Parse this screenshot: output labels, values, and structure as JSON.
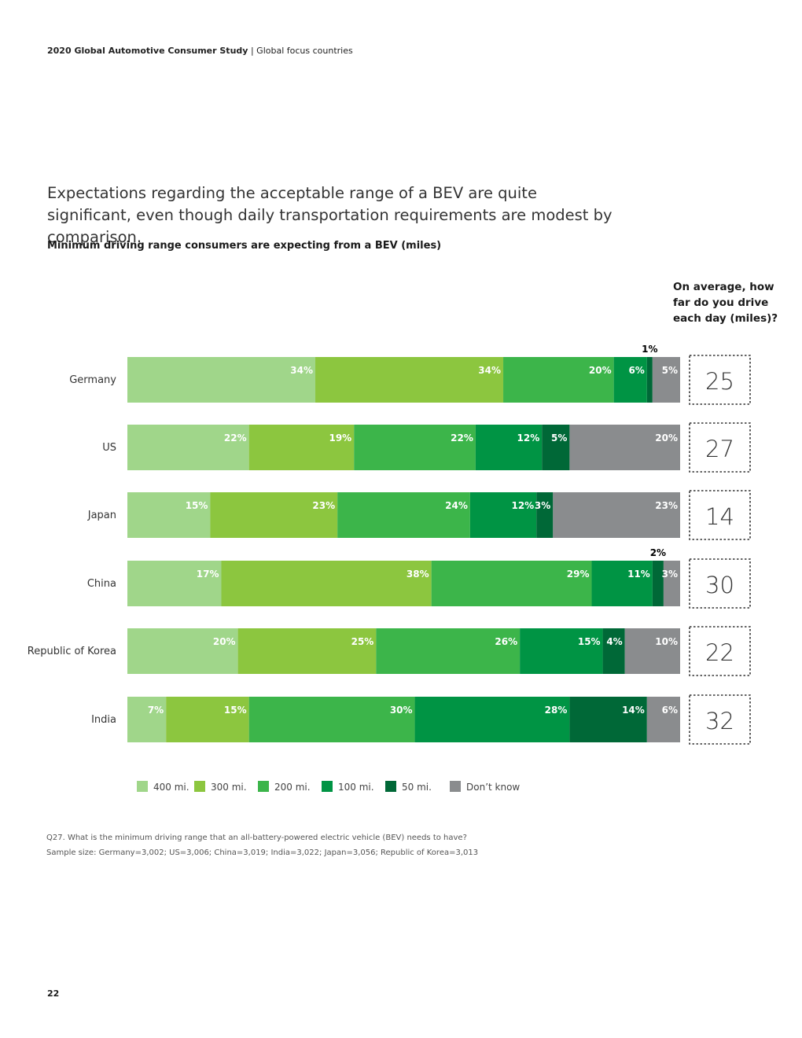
{
  "header": {
    "study": "2020 Global Automotive Consumer Study",
    "separator": "|",
    "section": "Global focus countries"
  },
  "headline": "Expectations regarding the acceptable range of a BEV are quite significant, even though daily transportation requirements are modest by comparison.",
  "footnotes": {
    "question": "Q27. What is the minimum driving range that an all-battery-powered electric vehicle (BEV) needs to have?",
    "sample": "Sample size: Germany=3,002; US=3,006; China=3,019; India=3,022; Japan=3,056; Republic of Korea=3,013"
  },
  "page_number": "22",
  "chart_data": {
    "type": "bar",
    "orientation": "horizontal",
    "stacked": true,
    "title": "Minimum driving range consumers are expecting from a BEV (miles)",
    "categories": [
      "Germany",
      "US",
      "Japan",
      "China",
      "Republic of Korea",
      "India"
    ],
    "series": [
      {
        "name": "400 mi.",
        "color": "#a0d68a",
        "values": [
          34,
          22,
          15,
          17,
          20,
          7
        ]
      },
      {
        "name": "300 mi.",
        "color": "#8cc63f",
        "values": [
          34,
          19,
          23,
          38,
          25,
          15
        ]
      },
      {
        "name": "200 mi.",
        "color": "#3cb54a",
        "values": [
          20,
          22,
          24,
          29,
          26,
          30
        ]
      },
      {
        "name": "100 mi.",
        "color": "#009444",
        "values": [
          6,
          12,
          12,
          11,
          15,
          28
        ]
      },
      {
        "name": "50 mi.",
        "color": "#006837",
        "values": [
          1,
          5,
          3,
          2,
          4,
          14
        ]
      },
      {
        "name": "Don’t know",
        "color": "#8a8c8e",
        "values": [
          5,
          20,
          23,
          3,
          10,
          6
        ]
      }
    ],
    "unit": "%",
    "legend_position": "bottom",
    "side_panel": {
      "title": "On average, how far do you drive each day (miles)?",
      "values": [
        25,
        27,
        14,
        30,
        22,
        32
      ]
    }
  }
}
